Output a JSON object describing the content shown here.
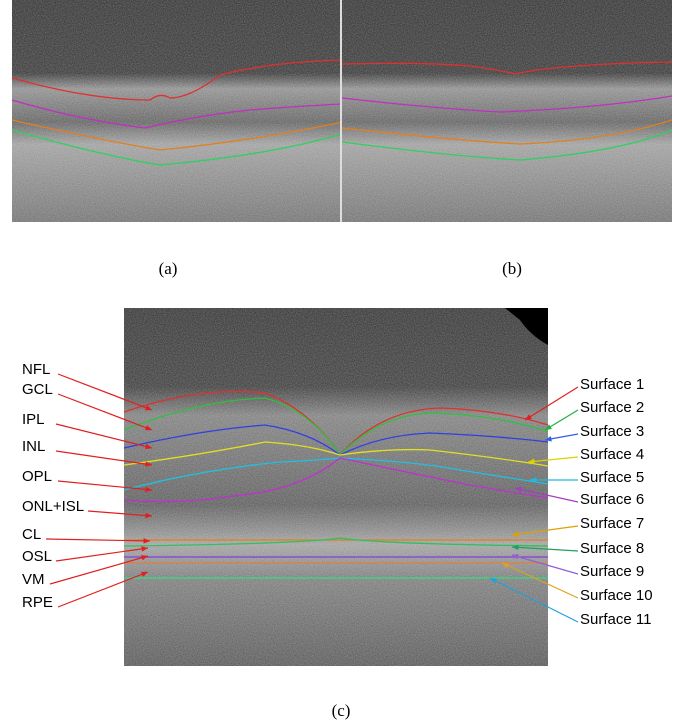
{
  "captions": [
    "(a)",
    "(b)",
    "(c)"
  ],
  "layers": [
    "NFL",
    "GCL",
    "IPL",
    "INL",
    "OPL",
    "ONL+ISL",
    "CL",
    "OSL",
    "VM",
    "RPE"
  ],
  "surfaces": [
    "Surface 1",
    "Surface 2",
    "Surface 3",
    "Surface 4",
    "Surface 5",
    "Surface 6",
    "Surface 7",
    "Surface 8",
    "Surface 9",
    "Surface 10",
    "Surface 11"
  ]
}
